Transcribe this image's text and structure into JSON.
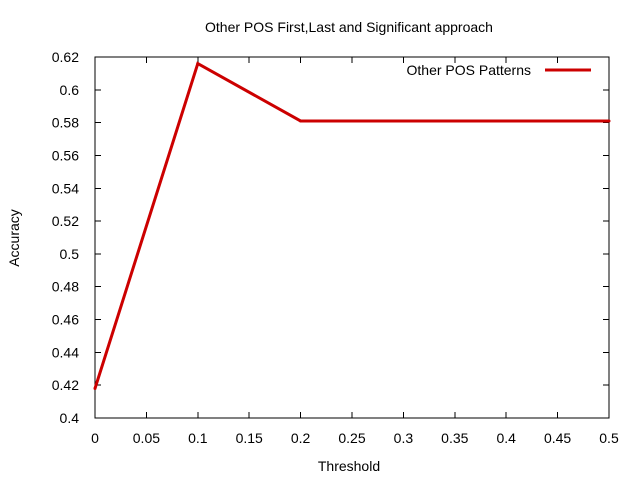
{
  "chart_data": {
    "type": "line",
    "title": "Other POS First,Last and Significant approach",
    "xlabel": "Threshold",
    "ylabel": "Accuracy",
    "xlim": [
      0,
      0.5
    ],
    "ylim": [
      0.4,
      0.62
    ],
    "x_ticks": [
      "0",
      "0.05",
      "0.1",
      "0.15",
      "0.2",
      "0.25",
      "0.3",
      "0.35",
      "0.4",
      "0.45",
      "0.5"
    ],
    "y_ticks": [
      "0.4",
      "0.42",
      "0.44",
      "0.46",
      "0.48",
      "0.5",
      "0.52",
      "0.54",
      "0.56",
      "0.58",
      "0.6",
      "0.62"
    ],
    "grid": false,
    "legend_position": "top-right",
    "series": [
      {
        "name": "Other POS Patterns",
        "color": "#cc0000",
        "x": [
          0,
          0.1,
          0.2,
          0.3,
          0.4,
          0.5
        ],
        "y": [
          0.418,
          0.616,
          0.581,
          0.581,
          0.581,
          0.581
        ]
      }
    ]
  }
}
